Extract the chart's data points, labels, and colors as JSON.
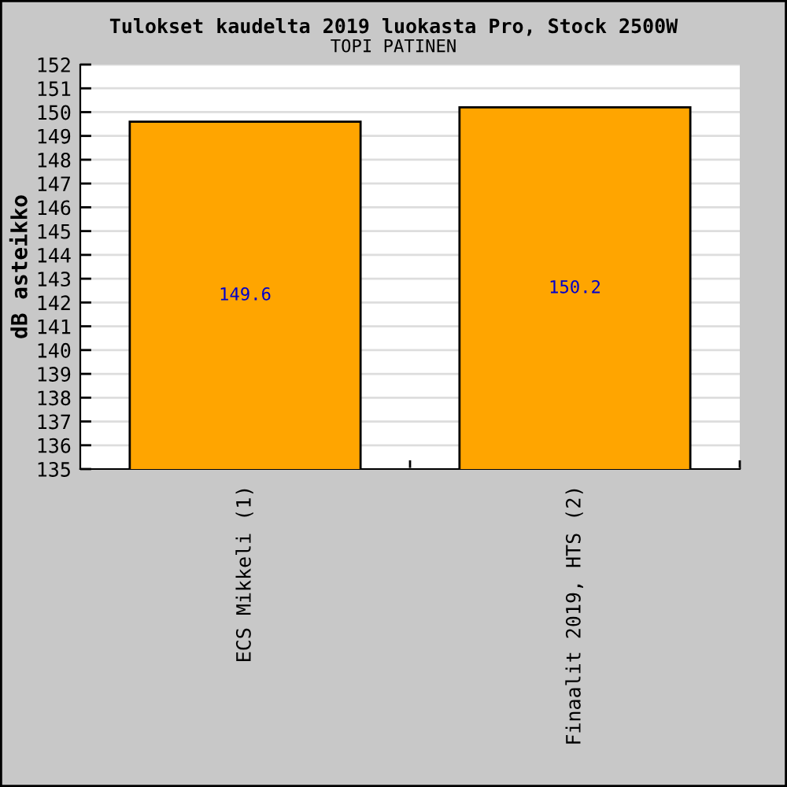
{
  "chart_data": {
    "type": "bar",
    "title": "Tulokset kaudelta 2019 luokasta Pro, Stock 2500W",
    "subtitle": "TOPI PATINEN",
    "ylabel": "dB asteikko",
    "categories": [
      "ECS Mikkeli (1)",
      "Finaalit 2019, HTS (2)"
    ],
    "values": [
      149.6,
      150.2
    ],
    "color": "#ffa500",
    "ylim": [
      135,
      152
    ],
    "yticks": [
      135,
      136,
      137,
      138,
      139,
      140,
      141,
      142,
      143,
      144,
      145,
      146,
      147,
      148,
      149,
      150,
      151,
      152
    ],
    "grid": "y",
    "data_labels": true
  }
}
